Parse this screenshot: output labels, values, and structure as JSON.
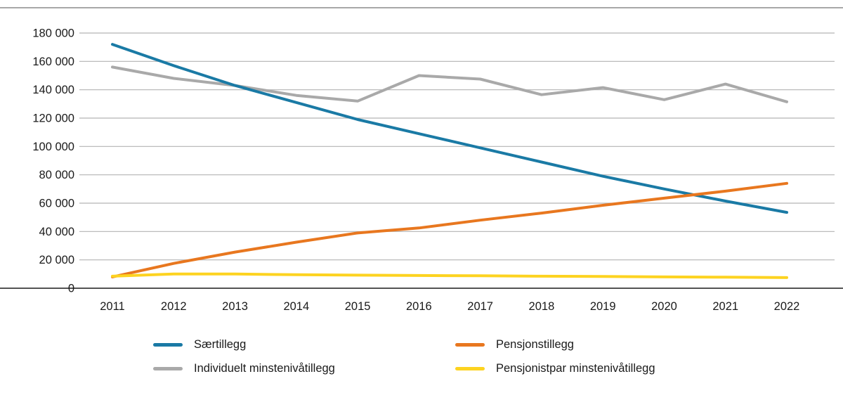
{
  "chart_data": {
    "type": "line",
    "title": "",
    "xlabel": "",
    "ylabel": "",
    "x": [
      "2011",
      "2012",
      "2013",
      "2014",
      "2015",
      "2016",
      "2017",
      "2018",
      "2019",
      "2020",
      "2021",
      "2022"
    ],
    "ylim": [
      0,
      180000
    ],
    "grid": "horizontal",
    "legend_position": "bottom",
    "y_ticks": [
      {
        "value": 0,
        "label": "0"
      },
      {
        "value": 20000,
        "label": "20 000"
      },
      {
        "value": 40000,
        "label": "40 000"
      },
      {
        "value": 60000,
        "label": "60 000"
      },
      {
        "value": 80000,
        "label": "80 000"
      },
      {
        "value": 100000,
        "label": "100 000"
      },
      {
        "value": 120000,
        "label": "120 000"
      },
      {
        "value": 140000,
        "label": "140 000"
      },
      {
        "value": 160000,
        "label": "160 000"
      },
      {
        "value": 180000,
        "label": "180 000"
      }
    ],
    "series": [
      {
        "name": "Særtillegg",
        "color": "#1a7aa5",
        "values": [
          172000,
          157000,
          143000,
          131000,
          119000,
          109000,
          99000,
          89000,
          79000,
          70000,
          61500,
          53500
        ]
      },
      {
        "name": "Pensjonstillegg",
        "color": "#e8771f",
        "values": [
          8000,
          17500,
          25500,
          32500,
          39000,
          42500,
          48000,
          53000,
          58500,
          63500,
          68500,
          74000
        ]
      },
      {
        "name": "Individuelt minstenivåtillegg",
        "color": "#a9a9a9",
        "values": [
          156000,
          148000,
          143000,
          136000,
          132000,
          150000,
          147500,
          136500,
          141500,
          133000,
          144000,
          131500
        ]
      },
      {
        "name": "Pensjonistpar minstenivåtillegg",
        "color": "#fdd320",
        "values": [
          8500,
          10000,
          10000,
          9500,
          9200,
          9000,
          8800,
          8500,
          8300,
          8000,
          7800,
          7500
        ]
      }
    ],
    "colors": {
      "grid": "#b3b3b3",
      "top_rule": "#8c8c8c",
      "axis": "#1a1a1a",
      "text": "#1a1a1a"
    }
  }
}
